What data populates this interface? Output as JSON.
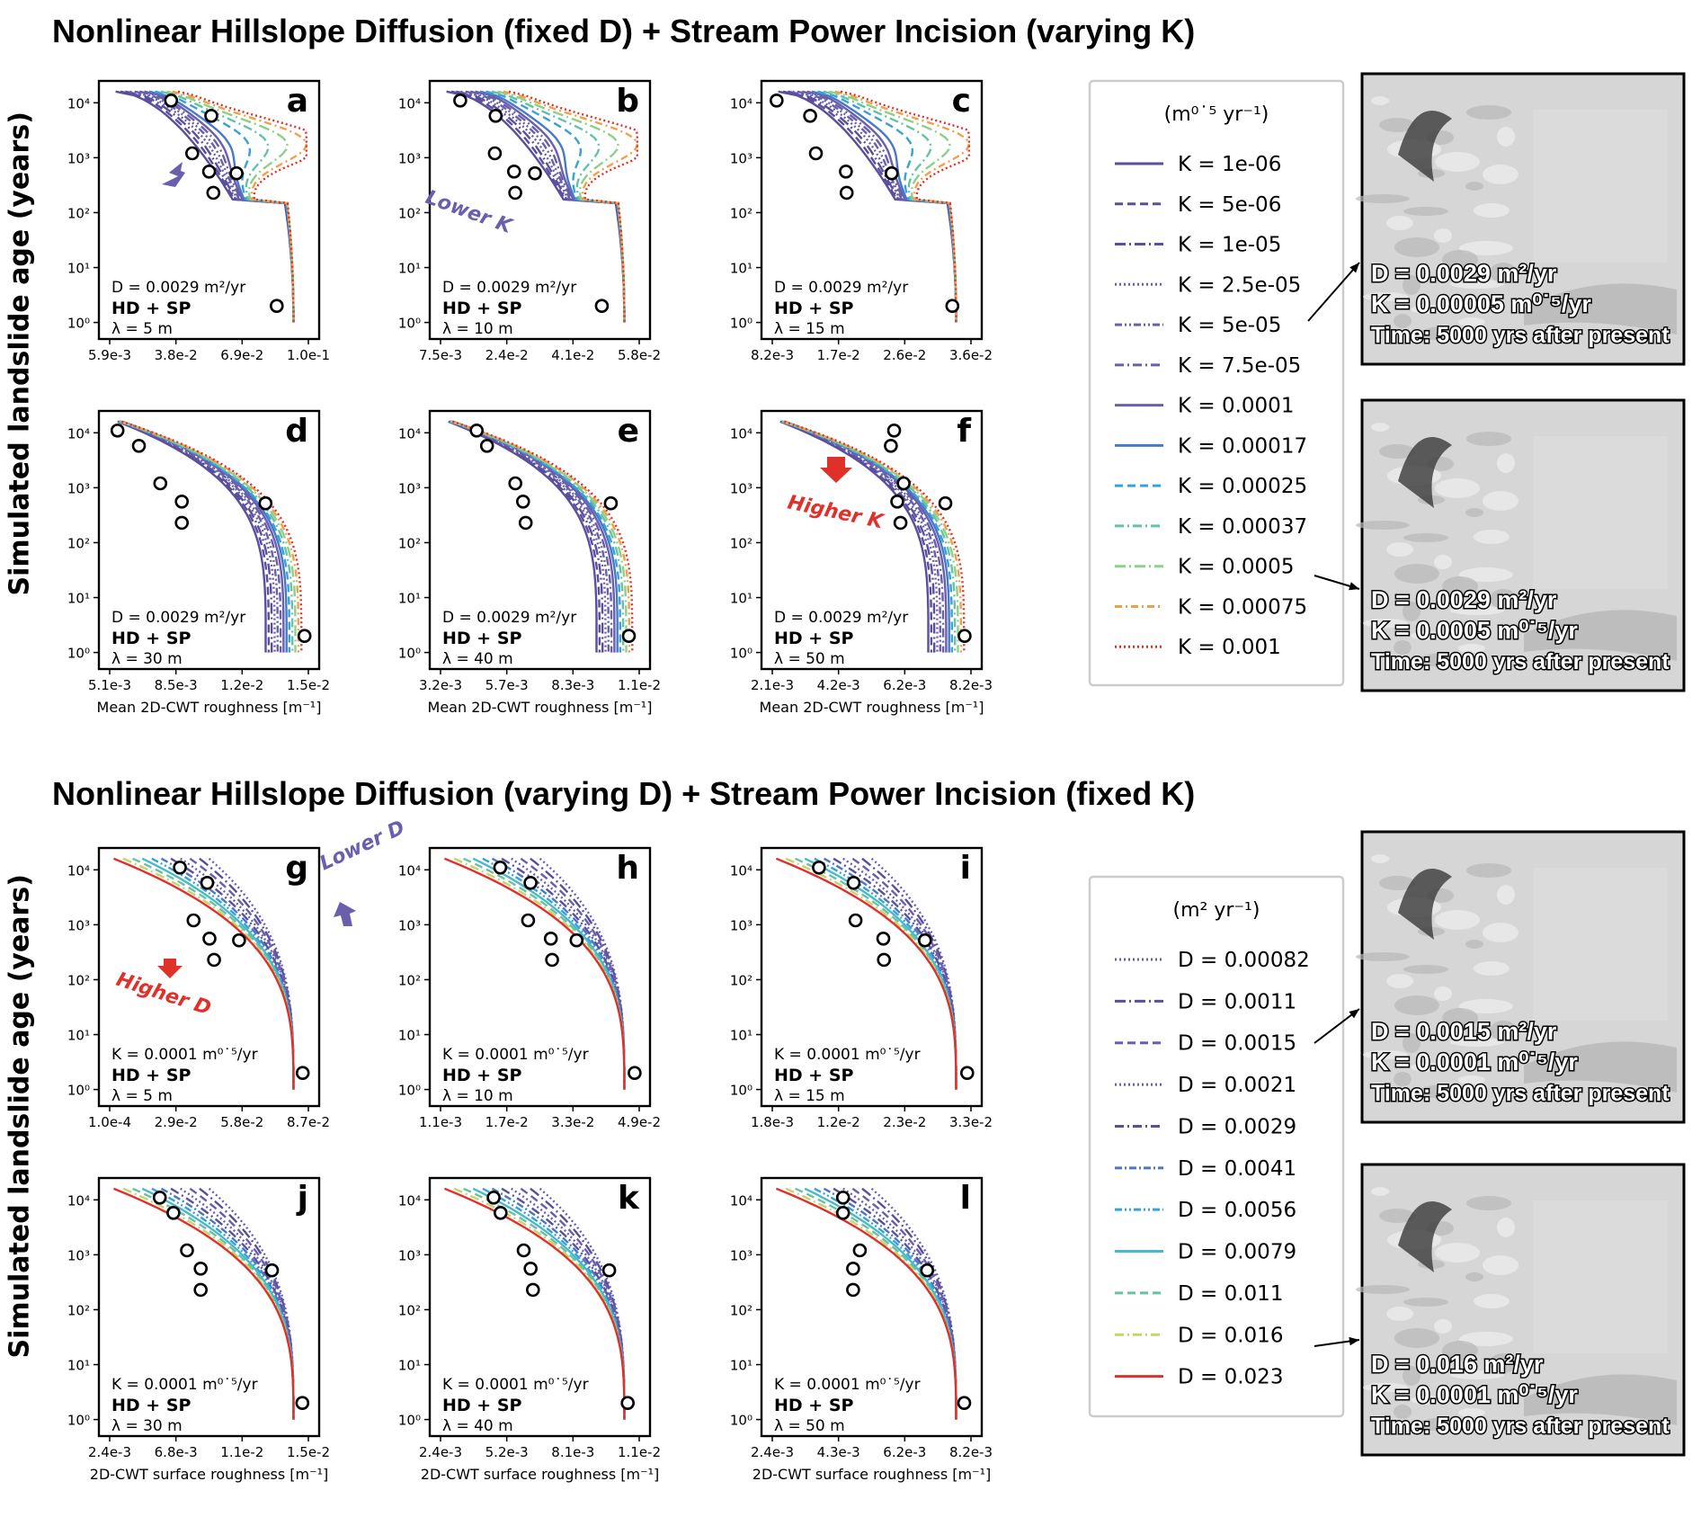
{
  "titles": {
    "top": "Nonlinear Hillslope Diffusion (fixed D) + Stream Power Incision (varying K)",
    "bottom": "Nonlinear Hillslope Diffusion (varying D) + Stream Power Incision (fixed K)"
  },
  "y_label": "Simulated landslide age (years)",
  "x_labels": {
    "top": "Mean 2D-CWT roughness [m⁻¹]",
    "bottom": "2D-CWT surface roughness [m⁻¹]"
  },
  "y_ticks": [
    "10⁴",
    "10³",
    "10²",
    "10¹",
    "10⁰"
  ],
  "annotations": {
    "lower_k": "Lower K",
    "higher_k": "Higher K",
    "lower_d": "Lower D",
    "higher_d": "Higher D"
  },
  "legend_top": {
    "unit": "(m⁰˙⁵ yr⁻¹)",
    "entries": [
      "K = 1e-06",
      "K = 5e-06",
      "K = 1e-05",
      "K = 2.5e-05",
      "K = 5e-05",
      "K = 7.5e-05",
      "K = 0.0001",
      "K = 0.00017",
      "K = 0.00025",
      "K = 0.00037",
      "K = 0.0005",
      "K = 0.00075",
      "K = 0.001"
    ]
  },
  "legend_bottom": {
    "unit": "(m² yr⁻¹)",
    "entries": [
      "D = 0.00082",
      "D = 0.0011",
      "D = 0.0015",
      "D = 0.0021",
      "D = 0.0029",
      "D = 0.0041",
      "D = 0.0056",
      "D = 0.0079",
      "D = 0.011",
      "D = 0.016",
      "D = 0.023"
    ]
  },
  "colors": {
    "purple_dark": "#5a4e9e",
    "purple": "#6a5fad",
    "blue": "#4878c8",
    "blue_light": "#3aa0d8",
    "cyan": "#49b9c9",
    "teal": "#66c2a5",
    "green": "#8fcf8a",
    "yellowgreen": "#c8d26e",
    "orange": "#f0a04a",
    "red": "#e0302a"
  },
  "map_insets": [
    {
      "lines": [
        "D = 0.0029 m²/yr",
        "K = 0.00005 m⁰˙⁵/yr",
        "Time: 5000 yrs after present"
      ]
    },
    {
      "lines": [
        "D = 0.0029 m²/yr",
        "K = 0.0005 m⁰˙⁵/yr",
        "Time: 5000 yrs after present"
      ]
    },
    {
      "lines": [
        "D = 0.0015 m²/yr",
        "K = 0.0001 m⁰˙⁵/yr",
        "Time: 5000 yrs after present"
      ]
    },
    {
      "lines": [
        "D = 0.016 m²/yr",
        "K = 0.0001 m⁰˙⁵/yr",
        "Time: 5000 yrs after present"
      ]
    }
  ],
  "chart_data": [
    {
      "type": "line",
      "panel": "a",
      "lambda": "λ = 5 m",
      "param": "D = 0.0029 m²/yr",
      "model": "HD + SP",
      "xticks": [
        "5.9e-3",
        "3.8e-2",
        "6.9e-2",
        "1.0e-1"
      ],
      "xlim": [
        0.0059,
        0.1
      ],
      "ylim": [
        0.5,
        25000
      ],
      "yscale": "log",
      "series_legend": "legend_top",
      "observed_points": [
        {
          "x": 0.035,
          "y": 11000
        },
        {
          "x": 0.054,
          "y": 5800
        },
        {
          "x": 0.045,
          "y": 1200
        },
        {
          "x": 0.053,
          "y": 560
        },
        {
          "x": 0.066,
          "y": 520
        },
        {
          "x": 0.055,
          "y": 230
        },
        {
          "x": 0.085,
          "y": 2
        }
      ]
    },
    {
      "type": "line",
      "panel": "b",
      "lambda": "λ = 10 m",
      "param": "D = 0.0029 m²/yr",
      "model": "HD + SP",
      "xticks": [
        "7.5e-3",
        "2.4e-2",
        "4.1e-2",
        "5.8e-2"
      ],
      "xlim": [
        0.0075,
        0.058
      ],
      "ylim": [
        0.5,
        25000
      ],
      "yscale": "log",
      "series_legend": "legend_top",
      "observed_points": [
        {
          "x": 0.0125,
          "y": 11000
        },
        {
          "x": 0.0215,
          "y": 5800
        },
        {
          "x": 0.0213,
          "y": 1200
        },
        {
          "x": 0.0262,
          "y": 560
        },
        {
          "x": 0.0315,
          "y": 520
        },
        {
          "x": 0.0265,
          "y": 230
        },
        {
          "x": 0.0485,
          "y": 2
        }
      ]
    },
    {
      "type": "line",
      "panel": "c",
      "lambda": "λ = 15 m",
      "param": "D = 0.0029 m²/yr",
      "model": "HD + SP",
      "xticks": [
        "8.2e-3",
        "1.7e-2",
        "2.6e-2",
        "3.6e-2"
      ],
      "xlim": [
        0.0082,
        0.036
      ],
      "ylim": [
        0.5,
        25000
      ],
      "yscale": "log",
      "series_legend": "legend_top",
      "observed_points": [
        {
          "x": 0.0088,
          "y": 11000
        },
        {
          "x": 0.0135,
          "y": 5800
        },
        {
          "x": 0.0143,
          "y": 1200
        },
        {
          "x": 0.0185,
          "y": 560
        },
        {
          "x": 0.0249,
          "y": 520
        },
        {
          "x": 0.0186,
          "y": 230
        },
        {
          "x": 0.0334,
          "y": 2
        }
      ]
    },
    {
      "type": "line",
      "panel": "d",
      "lambda": "λ = 30 m",
      "param": "D = 0.0029 m²/yr",
      "model": "HD + SP",
      "xticks": [
        "5.1e-3",
        "8.5e-3",
        "1.2e-2",
        "1.5e-2"
      ],
      "xlim": [
        0.0051,
        0.0153
      ],
      "ylim": [
        0.5,
        25000
      ],
      "yscale": "log",
      "series_legend": "legend_top",
      "observed_points": [
        {
          "x": 0.0055,
          "y": 11000
        },
        {
          "x": 0.0066,
          "y": 5800
        },
        {
          "x": 0.0077,
          "y": 1200
        },
        {
          "x": 0.0088,
          "y": 560
        },
        {
          "x": 0.0131,
          "y": 520
        },
        {
          "x": 0.0088,
          "y": 230
        },
        {
          "x": 0.0151,
          "y": 2
        }
      ]
    },
    {
      "type": "line",
      "panel": "e",
      "lambda": "λ = 40 m",
      "param": "D = 0.0029 m²/yr",
      "model": "HD + SP",
      "xticks": [
        "3.2e-3",
        "5.7e-3",
        "8.3e-3",
        "1.1e-2"
      ],
      "xlim": [
        0.0032,
        0.0109
      ],
      "ylim": [
        0.5,
        25000
      ],
      "yscale": "log",
      "series_legend": "legend_top",
      "observed_points": [
        {
          "x": 0.0046,
          "y": 11000
        },
        {
          "x": 0.005,
          "y": 5800
        },
        {
          "x": 0.0061,
          "y": 1200
        },
        {
          "x": 0.0064,
          "y": 560
        },
        {
          "x": 0.0098,
          "y": 520
        },
        {
          "x": 0.0065,
          "y": 230
        },
        {
          "x": 0.0105,
          "y": 2
        }
      ]
    },
    {
      "type": "line",
      "panel": "f",
      "lambda": "λ = 50 m",
      "param": "D = 0.0029 m²/yr",
      "model": "HD + SP",
      "xticks": [
        "2.1e-3",
        "4.2e-3",
        "6.2e-3",
        "8.2e-3"
      ],
      "xlim": [
        0.0021,
        0.0083
      ],
      "ylim": [
        0.5,
        25000
      ],
      "yscale": "log",
      "series_legend": "legend_top",
      "observed_points": [
        {
          "x": 0.0059,
          "y": 11000
        },
        {
          "x": 0.0058,
          "y": 5800
        },
        {
          "x": 0.0062,
          "y": 1200
        },
        {
          "x": 0.006,
          "y": 560
        },
        {
          "x": 0.0075,
          "y": 520
        },
        {
          "x": 0.0061,
          "y": 230
        },
        {
          "x": 0.0081,
          "y": 2
        }
      ]
    },
    {
      "type": "line",
      "panel": "g",
      "lambda": "λ = 5 m",
      "param": "K = 0.0001 m⁰˙⁵/yr",
      "model": "HD + SP",
      "xticks": [
        "1.0e-4",
        "2.9e-2",
        "5.8e-2",
        "8.7e-2"
      ],
      "xlim": [
        0.0001,
        0.0875
      ],
      "ylim": [
        0.5,
        25000
      ],
      "yscale": "log",
      "series_legend": "legend_bottom",
      "observed_points": [
        {
          "x": 0.031,
          "y": 11000
        },
        {
          "x": 0.043,
          "y": 5800
        },
        {
          "x": 0.037,
          "y": 1200
        },
        {
          "x": 0.044,
          "y": 560
        },
        {
          "x": 0.057,
          "y": 520
        },
        {
          "x": 0.046,
          "y": 230
        },
        {
          "x": 0.085,
          "y": 2
        }
      ]
    },
    {
      "type": "line",
      "panel": "h",
      "lambda": "λ = 10 m",
      "param": "K = 0.0001 m⁰˙⁵/yr",
      "model": "HD + SP",
      "xticks": [
        "1.1e-3",
        "1.7e-2",
        "3.3e-2",
        "4.9e-2"
      ],
      "xlim": [
        0.0011,
        0.049
      ],
      "ylim": [
        0.5,
        25000
      ],
      "yscale": "log",
      "series_legend": "legend_bottom",
      "observed_points": [
        {
          "x": 0.0155,
          "y": 11000
        },
        {
          "x": 0.0228,
          "y": 5800
        },
        {
          "x": 0.0222,
          "y": 1200
        },
        {
          "x": 0.0277,
          "y": 560
        },
        {
          "x": 0.0339,
          "y": 520
        },
        {
          "x": 0.028,
          "y": 230
        },
        {
          "x": 0.0479,
          "y": 2
        }
      ]
    },
    {
      "type": "line",
      "panel": "i",
      "lambda": "λ = 15 m",
      "param": "K = 0.0001 m⁰˙⁵/yr",
      "model": "HD + SP",
      "xticks": [
        "1.8e-3",
        "1.2e-2",
        "2.3e-2",
        "3.3e-2"
      ],
      "xlim": [
        0.0018,
        0.0333
      ],
      "ylim": [
        0.5,
        25000
      ],
      "yscale": "log",
      "series_legend": "legend_bottom",
      "observed_points": [
        {
          "x": 0.0092,
          "y": 11000
        },
        {
          "x": 0.0147,
          "y": 5800
        },
        {
          "x": 0.015,
          "y": 1200
        },
        {
          "x": 0.0194,
          "y": 560
        },
        {
          "x": 0.026,
          "y": 520
        },
        {
          "x": 0.0195,
          "y": 230
        },
        {
          "x": 0.0327,
          "y": 2
        }
      ]
    },
    {
      "type": "line",
      "panel": "j",
      "lambda": "λ = 30 m",
      "param": "K = 0.0001 m⁰˙⁵/yr",
      "model": "HD + SP",
      "xticks": [
        "2.4e-3",
        "6.8e-3",
        "1.1e-2",
        "1.5e-2"
      ],
      "xlim": [
        0.0024,
        0.0155
      ],
      "ylim": [
        0.5,
        25000
      ],
      "yscale": "log",
      "series_legend": "legend_bottom",
      "observed_points": [
        {
          "x": 0.0057,
          "y": 11000
        },
        {
          "x": 0.0066,
          "y": 5800
        },
        {
          "x": 0.0075,
          "y": 1200
        },
        {
          "x": 0.0084,
          "y": 560
        },
        {
          "x": 0.0131,
          "y": 520
        },
        {
          "x": 0.0084,
          "y": 230
        },
        {
          "x": 0.0151,
          "y": 2
        }
      ]
    },
    {
      "type": "line",
      "panel": "k",
      "lambda": "λ = 40 m",
      "param": "K = 0.0001 m⁰˙⁵/yr",
      "model": "HD + SP",
      "xticks": [
        "2.4e-3",
        "5.2e-3",
        "8.1e-3",
        "1.1e-2"
      ],
      "xlim": [
        0.0024,
        0.011
      ],
      "ylim": [
        0.5,
        25000
      ],
      "yscale": "log",
      "series_legend": "legend_bottom",
      "observed_points": [
        {
          "x": 0.0047,
          "y": 11000
        },
        {
          "x": 0.005,
          "y": 5800
        },
        {
          "x": 0.006,
          "y": 1200
        },
        {
          "x": 0.0063,
          "y": 560
        },
        {
          "x": 0.0097,
          "y": 520
        },
        {
          "x": 0.0064,
          "y": 230
        },
        {
          "x": 0.0105,
          "y": 2
        }
      ]
    },
    {
      "type": "line",
      "panel": "l",
      "lambda": "λ = 50 m",
      "param": "K = 0.0001 m⁰˙⁵/yr",
      "model": "HD + SP",
      "xticks": [
        "2.4e-3",
        "4.3e-3",
        "6.2e-3",
        "8.2e-3"
      ],
      "xlim": [
        0.0024,
        0.0083
      ],
      "ylim": [
        0.5,
        25000
      ],
      "yscale": "log",
      "series_legend": "legend_bottom",
      "observed_points": [
        {
          "x": 0.0045,
          "y": 11000
        },
        {
          "x": 0.0045,
          "y": 5800
        },
        {
          "x": 0.005,
          "y": 1200
        },
        {
          "x": 0.0048,
          "y": 560
        },
        {
          "x": 0.007,
          "y": 520
        },
        {
          "x": 0.0048,
          "y": 230
        },
        {
          "x": 0.0081,
          "y": 2
        }
      ]
    }
  ]
}
